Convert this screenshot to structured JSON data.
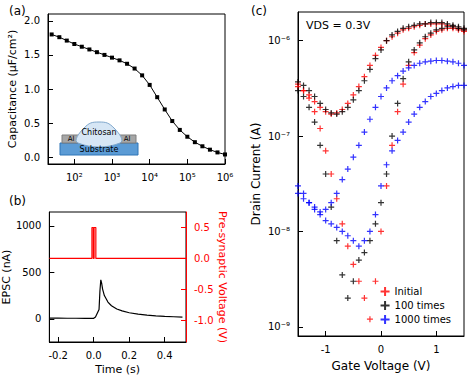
{
  "chart_data": [
    {
      "type": "line",
      "title": "(a)",
      "ylabel": "Capacitance (μF/cm²)",
      "log": "x",
      "grid": false,
      "color": "#000000",
      "marker": "square",
      "annotations": [
        "Chitosan",
        "Al",
        "Al",
        "Substrate"
      ],
      "xlim": [
        20,
        1000000
      ],
      "xticks": [
        {
          "value": 100,
          "label": "10²"
        },
        {
          "value": 1000,
          "label": "10³"
        },
        {
          "value": 10000,
          "label": "10⁴"
        },
        {
          "value": 100000,
          "label": "10⁵"
        },
        {
          "value": 1000000,
          "label": "10⁶"
        }
      ],
      "ylim": [
        -0.1,
        2.1
      ],
      "yticks": [
        {
          "value": 0,
          "label": "0.0"
        },
        0.5,
        {
          "value": 1,
          "label": "1.0"
        },
        1.5,
        {
          "value": 2,
          "label": "2.0"
        }
      ],
      "x": [
        25,
        40,
        63,
        100,
        158,
        251,
        398,
        631,
        1000,
        1585,
        2512,
        3981,
        6310,
        10000,
        15849,
        25119,
        39811,
        63096,
        100000,
        158489,
        251189,
        398107,
        631000,
        1000000
      ],
      "values": [
        1.8,
        1.76,
        1.71,
        1.66,
        1.62,
        1.58,
        1.54,
        1.5,
        1.46,
        1.42,
        1.37,
        1.3,
        1.2,
        1.06,
        0.88,
        0.7,
        0.53,
        0.4,
        0.3,
        0.22,
        0.16,
        0.11,
        0.07,
        0.04
      ]
    },
    {
      "type": "line",
      "title": "(b)",
      "xlabel": "Time (s)",
      "ylabel": "EPSC (nA)",
      "y2label": "Pre-synaptic Voltage (V)",
      "grid": false,
      "xlim": [
        -0.25,
        0.52
      ],
      "xticks": [
        -0.2,
        {
          "value": 0,
          "label": "0.0"
        },
        0.2,
        0.4
      ],
      "ylim": [
        -250,
        1150
      ],
      "yticks": [
        0,
        500,
        1000
      ],
      "y2lim": [
        -1.35,
        0.75
      ],
      "y2ticks": [
        0.5,
        {
          "value": 0,
          "label": "0.0"
        },
        -0.5,
        {
          "value": -1,
          "label": "-1.0"
        }
      ],
      "series": [
        {
          "color": "#000000",
          "x": [
            -0.25,
            -0.2,
            -0.15,
            -0.1,
            -0.05,
            0,
            0.01,
            0.02,
            0.03,
            0.035,
            0.04,
            0.045,
            0.05,
            0.06,
            0.08,
            0.1,
            0.13,
            0.16,
            0.2,
            0.25,
            0.3,
            0.35,
            0.4,
            0.45,
            0.5
          ],
          "values": [
            8,
            7,
            6,
            6,
            5,
            5,
            20,
            60,
            100,
            300,
            420,
            380,
            320,
            250,
            180,
            140,
            105,
            85,
            65,
            50,
            40,
            32,
            26,
            22,
            18
          ]
        },
        {
          "color": "#ff0000",
          "axis": "y2",
          "x": [
            -0.25,
            -0.01,
            -0.01,
            -0.002,
            -0.002,
            0.002,
            0.002,
            0.012,
            0.012,
            0.52
          ],
          "values": [
            0,
            0,
            0.5,
            0.5,
            0,
            0,
            0.5,
            0.5,
            0,
            0
          ]
        }
      ]
    },
    {
      "type": "scatter",
      "title": "(c)",
      "xlabel": "Gate Voltage (V)",
      "ylabel": "Drain Current (A)",
      "log": "y",
      "grid": false,
      "legend": "lower right",
      "marker": "plus",
      "annotations": [
        "VDS = 0.3V"
      ],
      "xlim": [
        -1.5,
        1.5
      ],
      "xticks": [
        -1,
        0,
        1
      ],
      "ylim": [
        8e-10,
        2e-06
      ],
      "yticks": [
        {
          "value": 1e-09,
          "label": "10⁻⁹"
        },
        {
          "value": 1e-08,
          "label": "10⁻⁸"
        },
        {
          "value": 1e-07,
          "label": "10⁻⁷"
        },
        {
          "value": 1e-06,
          "label": "10⁻⁶"
        }
      ],
      "series": [
        {
          "name": "Initial",
          "color": "#ff0000",
          "x": [
            -1.5,
            -1.4,
            -1.3,
            -1.2,
            -1.1,
            -1.0,
            -0.9,
            -0.8,
            -0.7,
            -0.6,
            -0.5,
            -0.4,
            -0.3,
            -0.2,
            -0.1,
            0,
            0.1,
            0.2,
            0.3,
            0.4,
            0.5,
            0.6,
            0.7,
            0.8,
            0.9,
            1.0,
            1.1,
            1.2,
            1.3,
            1.4,
            1.5,
            1.5,
            1.4,
            1.3,
            1.2,
            1.1,
            1.0,
            0.9,
            0.8,
            0.7,
            0.6,
            0.5,
            0.4,
            0.3,
            0.2,
            0.1,
            0,
            -0.1,
            -0.2,
            -0.3,
            -0.4,
            -0.5,
            -0.6,
            -0.7,
            -0.8,
            -0.9,
            -1.0,
            -1.1,
            -1.2,
            -1.3,
            -1.4,
            -1.5
          ],
          "values": [
            3.5e-07,
            3e-07,
            2.5e-07,
            1.8e-07,
            1.2e-07,
            7e-08,
            4e-08,
            2.2e-08,
            1.2e-08,
            7e-09,
            4.5e-09,
            3e-09,
            2e-09,
            1.2e-09,
            3e-09,
            1e-08,
            3e-08,
            8e-08,
            1.8e-07,
            3.5e-07,
            5.5e-07,
            7.5e-07,
            9e-07,
            1.05e-06,
            1.15e-06,
            1.25e-06,
            1.3e-06,
            1.35e-06,
            1.35e-06,
            1.3e-06,
            1.25e-06,
            1.3e-06,
            1.35e-06,
            1.4e-06,
            1.45e-06,
            1.5e-06,
            1.5e-06,
            1.5e-06,
            1.5e-06,
            1.45e-06,
            1.4e-06,
            1.35e-06,
            1.3e-06,
            1.2e-06,
            1.1e-06,
            1e-06,
            8.5e-07,
            7e-07,
            5.5e-07,
            4.2e-07,
            3.3e-07,
            2.7e-07,
            2.2e-07,
            1.9e-07,
            1.75e-07,
            1.7e-07,
            1.8e-07,
            2e-07,
            2.3e-07,
            2.7e-07,
            3e-07,
            3.3e-07
          ]
        },
        {
          "name": "100 times",
          "color": "#000000",
          "x": [
            -1.5,
            -1.4,
            -1.3,
            -1.2,
            -1.1,
            -1.0,
            -0.9,
            -0.8,
            -0.7,
            -0.6,
            -0.5,
            -0.4,
            -0.3,
            -0.2,
            -0.1,
            0,
            0.1,
            0.2,
            0.3,
            0.4,
            0.5,
            0.6,
            0.7,
            0.8,
            0.9,
            1.0,
            1.1,
            1.2,
            1.3,
            1.4,
            1.5,
            1.5,
            1.4,
            1.3,
            1.2,
            1.1,
            1.0,
            0.9,
            0.8,
            0.7,
            0.6,
            0.5,
            0.4,
            0.3,
            0.2,
            0.1,
            0,
            -0.1,
            -0.2,
            -0.3,
            -0.4,
            -0.5,
            -0.6,
            -0.7,
            -0.8,
            -0.9,
            -1.0,
            -1.1,
            -1.2,
            -1.3,
            -1.4,
            -1.5
          ],
          "values": [
            3e-07,
            2.6e-07,
            2e-07,
            1.4e-07,
            8e-08,
            4e-08,
            1.8e-08,
            8e-09,
            3.5e-09,
            2e-09,
            3e-09,
            5e-09,
            6e-09,
            8e-09,
            1.2e-08,
            2e-08,
            4e-08,
            1e-07,
            2.2e-07,
            4e-07,
            6e-07,
            8e-07,
            9.5e-07,
            1.1e-06,
            1.2e-06,
            1.3e-06,
            1.35e-06,
            1.4e-06,
            1.4e-06,
            1.35e-06,
            1.3e-06,
            1.35e-06,
            1.4e-06,
            1.45e-06,
            1.5e-06,
            1.55e-06,
            1.55e-06,
            1.55e-06,
            1.5e-06,
            1.5e-06,
            1.45e-06,
            1.4e-06,
            1.35e-06,
            1.25e-06,
            1.15e-06,
            1e-06,
            8e-07,
            6.5e-07,
            5e-07,
            3.8e-07,
            3e-07,
            2.4e-07,
            2e-07,
            1.8e-07,
            1.7e-07,
            1.75e-07,
            1.9e-07,
            2.2e-07,
            2.6e-07,
            3e-07,
            3.4e-07,
            3.7e-07
          ]
        },
        {
          "name": "1000 times",
          "color": "#0000ff",
          "x": [
            -1.5,
            -1.4,
            -1.3,
            -1.2,
            -1.1,
            -1.0,
            -0.9,
            -0.8,
            -0.7,
            -0.6,
            -0.5,
            -0.4,
            -0.3,
            -0.2,
            -0.1,
            0,
            0.1,
            0.2,
            0.3,
            0.4,
            0.5,
            0.6,
            0.7,
            0.8,
            0.9,
            1.0,
            1.1,
            1.2,
            1.3,
            1.4,
            1.5,
            1.5,
            1.4,
            1.3,
            1.2,
            1.1,
            1.0,
            0.9,
            0.8,
            0.7,
            0.6,
            0.5,
            0.4,
            0.3,
            0.2,
            0.1,
            0,
            -0.1,
            -0.2,
            -0.3,
            -0.4,
            -0.5,
            -0.6,
            -0.7,
            -0.8,
            -0.9,
            -1.0,
            -1.1,
            -1.2,
            -1.3,
            -1.4,
            -1.5
          ],
          "values": [
            2.5e-08,
            2.2e-08,
            2e-08,
            1.8e-08,
            1.5e-08,
            1.3e-08,
            1.2e-08,
            1.1e-08,
            1e-08,
            9e-09,
            8e-09,
            7e-09,
            8e-09,
            1e-08,
            1.5e-08,
            3e-08,
            5e-08,
            7e-08,
            9e-08,
            1.1e-07,
            1.4e-07,
            1.7e-07,
            2e-07,
            2.3e-07,
            2.6e-07,
            2.8e-07,
            3e-07,
            3.2e-07,
            3.3e-07,
            3.4e-07,
            3.4e-07,
            5.5e-07,
            5.8e-07,
            6e-07,
            6.1e-07,
            6.2e-07,
            6.2e-07,
            6.1e-07,
            6e-07,
            5.8e-07,
            5.5e-07,
            5.2e-07,
            4.8e-07,
            4.3e-07,
            3.8e-07,
            3.2e-07,
            2.6e-07,
            2e-07,
            1.5e-07,
            1.1e-07,
            8e-08,
            6e-08,
            4.5e-08,
            3.5e-08,
            2.5e-08,
            2e-08,
            1.7e-08,
            1.6e-08,
            1.7e-08,
            2e-08,
            2.5e-08,
            3e-08
          ]
        }
      ]
    }
  ]
}
